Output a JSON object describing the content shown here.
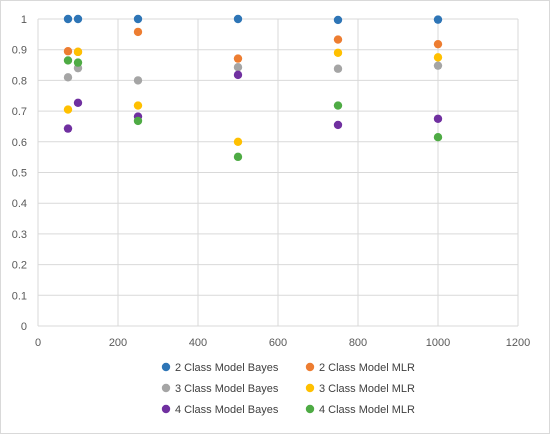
{
  "chart_data": {
    "type": "scatter",
    "title": "",
    "xlabel": "",
    "ylabel": "",
    "xlim": [
      0,
      1200
    ],
    "ylim": [
      0,
      1
    ],
    "x_ticks": [
      "0",
      "200",
      "400",
      "600",
      "800",
      "1000",
      "1200"
    ],
    "y_ticks": [
      "0",
      "0.1",
      "0.2",
      "0.3",
      "0.4",
      "0.5",
      "0.6",
      "0.7",
      "0.8",
      "0.9",
      "1"
    ],
    "grid": true,
    "legend_position": "bottom",
    "series": [
      {
        "name": "2 Class Model Bayes",
        "color": "#2e75b6",
        "points": [
          [
            75,
            1.0
          ],
          [
            100,
            1.0
          ],
          [
            250,
            1.0
          ],
          [
            500,
            1.0
          ],
          [
            750,
            0.997
          ],
          [
            1000,
            0.998
          ]
        ]
      },
      {
        "name": "2 Class Model MLR",
        "color": "#ed7d31",
        "points": [
          [
            75,
            0.895
          ],
          [
            100,
            0.893
          ],
          [
            250,
            0.958
          ],
          [
            500,
            0.871
          ],
          [
            750,
            0.933
          ],
          [
            1000,
            0.918
          ]
        ]
      },
      {
        "name": "3 Class Model Bayes",
        "color": "#a5a5a5",
        "points": [
          [
            75,
            0.81
          ],
          [
            100,
            0.84
          ],
          [
            250,
            0.8
          ],
          [
            500,
            0.843
          ],
          [
            750,
            0.838
          ],
          [
            1000,
            0.848
          ]
        ]
      },
      {
        "name": "3 Class Model MLR",
        "color": "#ffc000",
        "points": [
          [
            75,
            0.705
          ],
          [
            100,
            0.893
          ],
          [
            250,
            0.718
          ],
          [
            500,
            0.6
          ],
          [
            750,
            0.89
          ],
          [
            1000,
            0.875
          ]
        ]
      },
      {
        "name": "4 Class Model  Bayes",
        "color": "#7030a0",
        "points": [
          [
            75,
            0.643
          ],
          [
            100,
            0.727
          ],
          [
            250,
            0.682
          ],
          [
            500,
            0.818
          ],
          [
            750,
            0.655
          ],
          [
            1000,
            0.675
          ]
        ]
      },
      {
        "name": "4 Class Model  MLR",
        "color": "#4eab44",
        "points": [
          [
            75,
            0.865
          ],
          [
            100,
            0.858
          ],
          [
            250,
            0.668
          ],
          [
            500,
            0.551
          ],
          [
            750,
            0.718
          ],
          [
            1000,
            0.615
          ]
        ]
      }
    ]
  }
}
